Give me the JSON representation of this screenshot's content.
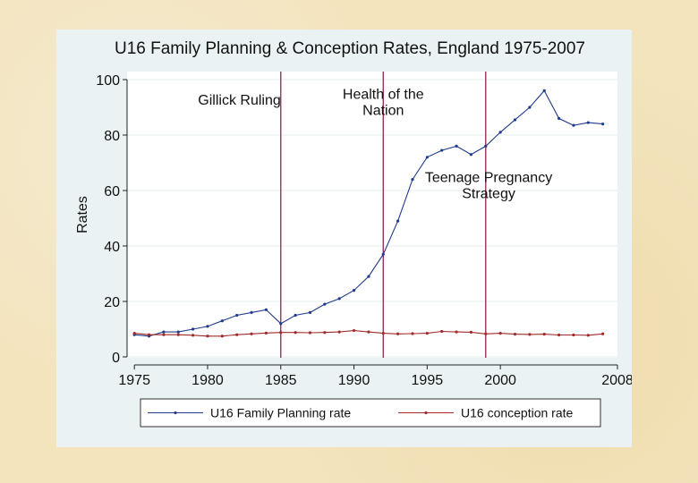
{
  "chart_data": {
    "type": "line",
    "title": "U16 Family Planning & Conception Rates, England 1975-2007",
    "xlabel": "",
    "ylabel": "Rates",
    "xlim": [
      1974.5,
      2008
    ],
    "ylim": [
      0,
      100
    ],
    "x_ticks": [
      1975,
      1980,
      1985,
      1990,
      1995,
      2000,
      2008
    ],
    "y_ticks": [
      0,
      20,
      40,
      60,
      80,
      100
    ],
    "grid": true,
    "series": [
      {
        "name": "U16 Family Planning rate",
        "color": "#1f3c8c",
        "x": [
          1975,
          1976,
          1977,
          1978,
          1979,
          1980,
          1981,
          1982,
          1983,
          1984,
          1985,
          1986,
          1987,
          1988,
          1989,
          1990,
          1991,
          1992,
          1993,
          1994,
          1995,
          1996,
          1997,
          1998,
          1999,
          2000,
          2001,
          2002,
          2003,
          2004,
          2005,
          2006,
          2007
        ],
        "values": [
          8,
          7.5,
          9,
          9,
          10,
          11,
          13,
          15,
          16,
          17,
          12,
          15,
          16,
          19,
          21,
          24,
          29,
          37,
          49,
          64,
          72,
          74.5,
          76,
          73,
          76,
          81,
          85.5,
          90,
          96,
          86,
          83.5,
          84.5,
          84
        ]
      },
      {
        "name": "U16 conception rate",
        "color": "#a32a2a",
        "x": [
          1975,
          1976,
          1977,
          1978,
          1979,
          1980,
          1981,
          1982,
          1983,
          1984,
          1985,
          1986,
          1987,
          1988,
          1989,
          1990,
          1991,
          1992,
          1993,
          1994,
          1995,
          1996,
          1997,
          1998,
          1999,
          2000,
          2001,
          2002,
          2003,
          2004,
          2005,
          2006,
          2007
        ],
        "values": [
          8.5,
          8,
          8,
          8,
          7.8,
          7.5,
          7.5,
          8,
          8.3,
          8.6,
          8.8,
          8.8,
          8.7,
          8.8,
          9,
          9.5,
          9,
          8.5,
          8.3,
          8.4,
          8.5,
          9.2,
          9,
          8.9,
          8.3,
          8.5,
          8.2,
          8.1,
          8.2,
          7.9,
          7.9,
          7.8,
          8.3
        ]
      }
    ],
    "reference_lines": [
      {
        "x": 1985,
        "color": "#8b2552"
      },
      {
        "x": 1992,
        "color": "#8b2552"
      },
      {
        "x": 1999,
        "color": "#8b2552"
      }
    ],
    "annotations": [
      {
        "lines": [
          "Gillick Ruling"
        ],
        "x": 1985,
        "y": 91,
        "anchor": "end"
      },
      {
        "lines": [
          "Health of the",
          "Nation"
        ],
        "x": 1992,
        "y": 93,
        "anchor": "middle"
      },
      {
        "lines": [
          "Teenage Pregnancy",
          "Strategy"
        ],
        "x": 1999.2,
        "y": 63,
        "anchor": "middle"
      }
    ],
    "legend_position": "bottom"
  }
}
